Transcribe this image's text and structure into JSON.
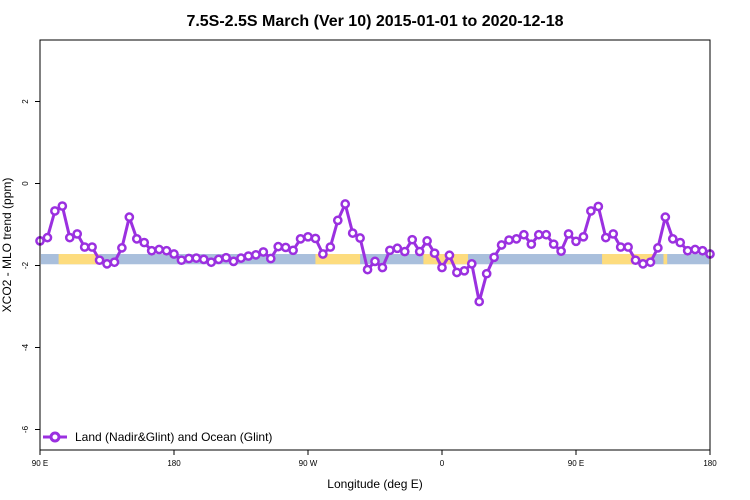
{
  "chart_data": {
    "type": "line",
    "title": "7.5S-2.5S March (Ver 10)   2015-01-01 to 2020-12-18",
    "xlabel": "Longitude (deg E)",
    "ylabel": "XCO2 - MLO trend (ppm)",
    "xlim": [
      90,
      450
    ],
    "ylim": [
      -6.5,
      3.5
    ],
    "x_tick_values": [
      90,
      162,
      234,
      306,
      378,
      450
    ],
    "x_tick_labels": [
      "90 E",
      "180",
      "90 W",
      "0",
      "90 E",
      "180"
    ],
    "y_tick_values": [
      -6,
      -4,
      -2,
      0,
      2
    ],
    "y_tick_labels": [
      "-6",
      "-4",
      "-2",
      "0",
      "2"
    ],
    "grid": false,
    "legend_position": "bottom-left",
    "colors": {
      "series": "#9b30e0",
      "ocean_band": "#a9bfdc",
      "land_band": "#fddc7e",
      "axis": "#000000"
    },
    "surface_band": {
      "y_range": [
        -1.97,
        -1.72
      ],
      "ocean_color": "#a9bfdc",
      "land_color": "#fddc7e",
      "land_segments_lon": [
        [
          100,
          122
        ],
        [
          238,
          262
        ],
        [
          296,
          320
        ],
        [
          392,
          420
        ],
        [
          425,
          427
        ]
      ]
    },
    "series": [
      {
        "name": "Land (Nadir&Glint) and Ocean (Glint)",
        "x": [
          90,
          94,
          98,
          102,
          106,
          110,
          114,
          118,
          122,
          126,
          130,
          134,
          138,
          142,
          146,
          150,
          154,
          158,
          162,
          166,
          170,
          174,
          178,
          182,
          186,
          190,
          194,
          198,
          202,
          206,
          210,
          214,
          218,
          222,
          226,
          230,
          234,
          238,
          242,
          246,
          250,
          254,
          258,
          262,
          266,
          270,
          274,
          278,
          282,
          286,
          290,
          294,
          298,
          302,
          306,
          310,
          314,
          318,
          322,
          326,
          330,
          334,
          338,
          342,
          346,
          350,
          354,
          358,
          362,
          366,
          370,
          374,
          378,
          382,
          386,
          390,
          394,
          398,
          402,
          406,
          410,
          414,
          418,
          422,
          426,
          430,
          434,
          438,
          442,
          446,
          450
        ],
        "y": [
          -1.4,
          -1.32,
          -0.67,
          -0.55,
          -1.32,
          -1.23,
          -1.55,
          -1.55,
          -1.87,
          -1.96,
          -1.92,
          -1.57,
          -0.82,
          -1.35,
          -1.44,
          -1.64,
          -1.61,
          -1.64,
          -1.72,
          -1.87,
          -1.83,
          -1.82,
          -1.85,
          -1.92,
          -1.85,
          -1.81,
          -1.9,
          -1.82,
          -1.77,
          -1.74,
          -1.67,
          -1.83,
          -1.54,
          -1.56,
          -1.63,
          -1.35,
          -1.3,
          -1.34,
          -1.72,
          -1.55,
          -0.9,
          -0.5,
          -1.21,
          -1.33,
          -2.1,
          -1.9,
          -2.05,
          -1.63,
          -1.58,
          -1.66,
          -1.37,
          -1.66,
          -1.4,
          -1.7,
          -2.05,
          -1.75,
          -2.17,
          -2.13,
          -1.96,
          -2.88,
          -2.2,
          -1.8,
          -1.5,
          -1.38,
          -1.35,
          -1.25,
          -1.48,
          -1.25,
          -1.25,
          -1.48,
          -1.65,
          -1.23,
          -1.41,
          -1.3,
          -0.67,
          -0.56,
          -1.32,
          -1.23,
          -1.55,
          -1.55,
          -1.87,
          -1.96,
          -1.92,
          -1.57,
          -0.82,
          -1.35,
          -1.44,
          -1.64,
          -1.61,
          -1.64,
          -1.72
        ]
      }
    ]
  }
}
